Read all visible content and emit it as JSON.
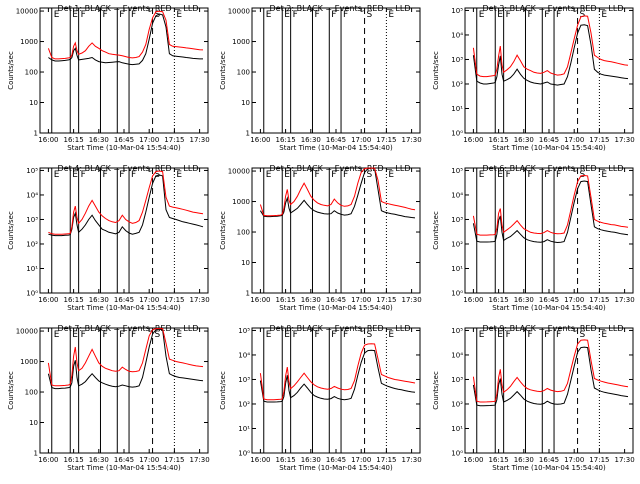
{
  "chart_data": {
    "type": "line",
    "x_ticks": [
      "16:00",
      "16:15",
      "16:30",
      "16:45",
      "17:00",
      "17:15",
      "17:30"
    ],
    "x_tick_minutes": [
      0,
      15,
      30,
      45,
      60,
      75,
      90
    ],
    "x_range_minutes": [
      -5,
      95
    ],
    "ylabel": "Counts/sec",
    "xlabel": "Start Time (10-Mar-04 15:54:40)",
    "colors": {
      "events": "#000000",
      "lld": "#ff0000"
    },
    "markers": [
      {
        "t": 2,
        "label": "E",
        "style": "solid"
      },
      {
        "t": 13,
        "label": "E",
        "style": "solid"
      },
      {
        "t": 18,
        "label": "F",
        "style": "solid"
      },
      {
        "t": 31,
        "label": "F",
        "style": "solid"
      },
      {
        "t": 41,
        "label": "F",
        "style": "solid"
      },
      {
        "t": 48,
        "label": "F",
        "style": "solid"
      },
      {
        "t": 62,
        "label": "S",
        "style": "dash"
      },
      {
        "t": 75,
        "label": "E",
        "style": "dot"
      }
    ],
    "t": [
      0,
      2,
      4,
      6,
      8,
      10,
      12,
      13,
      14,
      15,
      16,
      17,
      18,
      20,
      22,
      24,
      26,
      28,
      30,
      32,
      34,
      36,
      38,
      40,
      42,
      44,
      46,
      48,
      50,
      52,
      54,
      56,
      58,
      60,
      62,
      64,
      66,
      68,
      70,
      72,
      74,
      76,
      78,
      80,
      82,
      84,
      86,
      88,
      90,
      92
    ],
    "panels": [
      {
        "title": "Det 1: BLACK = Events, RED = LLD",
        "y_ticks": [
          "1",
          "10",
          "100",
          "1000",
          "10000"
        ],
        "y_exp_range": [
          0,
          4.1
        ],
        "events": [
          300,
          250,
          230,
          230,
          235,
          240,
          250,
          260,
          300,
          500,
          600,
          350,
          250,
          260,
          270,
          280,
          300,
          250,
          220,
          210,
          200,
          205,
          210,
          215,
          220,
          200,
          190,
          180,
          175,
          180,
          185,
          240,
          400,
          1200,
          4000,
          7000,
          8000,
          7500,
          3000,
          400,
          340,
          330,
          320,
          310,
          300,
          290,
          280,
          275,
          270,
          270
        ],
        "lld": [
          600,
          300,
          270,
          270,
          275,
          280,
          290,
          300,
          360,
          700,
          900,
          500,
          380,
          420,
          500,
          700,
          900,
          700,
          600,
          500,
          450,
          400,
          380,
          370,
          360,
          340,
          320,
          300,
          290,
          300,
          320,
          450,
          800,
          2500,
          6000,
          9500,
          9800,
          9500,
          5000,
          800,
          700,
          680,
          660,
          640,
          620,
          600,
          580,
          560,
          540,
          530
        ]
      },
      {
        "title": "Det 2: BLACK = Events, RED = LLD",
        "y_ticks": [
          "1",
          "10",
          "100",
          "1000",
          "10000"
        ],
        "y_exp_range": [
          0,
          4.1
        ],
        "events": [],
        "lld": []
      },
      {
        "title": "Det 3: BLACK = Events, RED = LLD",
        "y_ticks": [
          "10⁰",
          "10¹",
          "10²",
          "10³",
          "10⁴",
          "10⁵"
        ],
        "y_exp_range": [
          0,
          5.1
        ],
        "events": [
          1500,
          130,
          110,
          100,
          100,
          105,
          110,
          115,
          200,
          600,
          1400,
          250,
          130,
          150,
          180,
          250,
          400,
          250,
          170,
          140,
          120,
          110,
          105,
          100,
          110,
          120,
          100,
          95,
          90,
          95,
          100,
          200,
          700,
          3000,
          12000,
          25000,
          26000,
          24000,
          4000,
          400,
          300,
          250,
          230,
          220,
          210,
          200,
          190,
          180,
          170,
          165
        ],
        "lld": [
          3000,
          250,
          210,
          200,
          200,
          210,
          220,
          230,
          400,
          1400,
          3500,
          600,
          300,
          380,
          500,
          800,
          1500,
          900,
          500,
          400,
          350,
          300,
          280,
          270,
          300,
          350,
          280,
          250,
          230,
          240,
          260,
          500,
          1800,
          7000,
          25000,
          55000,
          60000,
          58000,
          12000,
          1500,
          1200,
          1000,
          900,
          850,
          800,
          750,
          700,
          650,
          600,
          580
        ]
      },
      {
        "title": "Det 4: BLACK = Events, RED = LLD",
        "y_ticks": [
          "10⁰",
          "10¹",
          "10²",
          "10³",
          "10⁴",
          "10⁵"
        ],
        "y_exp_range": [
          0,
          5.1
        ],
        "events": [
          250,
          230,
          220,
          220,
          220,
          225,
          230,
          240,
          400,
          1200,
          1800,
          600,
          300,
          400,
          600,
          1000,
          1500,
          900,
          600,
          400,
          350,
          300,
          280,
          260,
          300,
          500,
          350,
          280,
          250,
          270,
          300,
          600,
          2000,
          8000,
          30000,
          60000,
          65000,
          60000,
          2500,
          1200,
          1100,
          1000,
          900,
          800,
          750,
          700,
          650,
          600,
          550,
          500
        ],
        "lld": [
          300,
          260,
          250,
          250,
          250,
          255,
          260,
          270,
          500,
          2000,
          3500,
          1200,
          700,
          1000,
          1800,
          3500,
          6000,
          3500,
          2000,
          1400,
          1100,
          900,
          800,
          750,
          900,
          1500,
          1000,
          800,
          700,
          750,
          900,
          2000,
          6000,
          20000,
          60000,
          90000,
          95000,
          90000,
          8000,
          3500,
          3200,
          3000,
          2800,
          2600,
          2400,
          2200,
          2000,
          1900,
          1800,
          1700
        ]
      },
      {
        "title": "Det 5: BLACK = Events, RED = LLD",
        "y_ticks": [
          "1",
          "10",
          "100",
          "1000",
          "10000"
        ],
        "y_exp_range": [
          0,
          4.1
        ],
        "events": [
          500,
          330,
          320,
          320,
          325,
          330,
          340,
          350,
          450,
          900,
          1300,
          600,
          420,
          500,
          600,
          800,
          1100,
          800,
          600,
          500,
          450,
          420,
          400,
          390,
          400,
          500,
          420,
          380,
          360,
          370,
          400,
          700,
          1600,
          4000,
          9000,
          12000,
          12500,
          12000,
          2500,
          500,
          450,
          420,
          400,
          380,
          360,
          340,
          320,
          310,
          300,
          290
        ],
        "lld": [
          800,
          350,
          340,
          340,
          345,
          350,
          360,
          380,
          600,
          1500,
          2500,
          1100,
          800,
          1000,
          1500,
          2500,
          4000,
          2500,
          1500,
          1100,
          900,
          800,
          750,
          720,
          800,
          1200,
          900,
          750,
          700,
          720,
          800,
          1500,
          4000,
          9000,
          12000,
          12500,
          12500,
          12500,
          5000,
          1000,
          900,
          850,
          800,
          760,
          720,
          680,
          640,
          600,
          560,
          540
        ]
      },
      {
        "title": "Det 6: BLACK = Events, RED = LLD",
        "y_ticks": [
          "10⁰",
          "10¹",
          "10²",
          "10³",
          "10⁴",
          "10⁵"
        ],
        "y_exp_range": [
          0,
          5.1
        ],
        "events": [
          700,
          130,
          120,
          120,
          120,
          122,
          125,
          130,
          250,
          900,
          1400,
          300,
          140,
          170,
          200,
          260,
          350,
          250,
          180,
          150,
          135,
          125,
          120,
          118,
          125,
          150,
          130,
          120,
          115,
          118,
          125,
          300,
          1200,
          5000,
          18000,
          35000,
          37000,
          35000,
          4000,
          500,
          420,
          380,
          350,
          330,
          310,
          300,
          280,
          260,
          250,
          240
        ],
        "lld": [
          1400,
          250,
          230,
          230,
          230,
          235,
          240,
          250,
          450,
          1800,
          2800,
          600,
          300,
          380,
          480,
          650,
          900,
          600,
          420,
          350,
          300,
          280,
          270,
          265,
          290,
          350,
          300,
          270,
          260,
          265,
          280,
          600,
          2400,
          10000,
          35000,
          60000,
          62000,
          60000,
          8000,
          1000,
          850,
          760,
          700,
          660,
          620,
          600,
          560,
          520,
          500,
          480
        ]
      },
      {
        "title": "Det 7: BLACK = Events, RED = LLD",
        "y_ticks": [
          "1",
          "10",
          "100",
          "1000",
          "10000"
        ],
        "y_exp_range": [
          0,
          4.1
        ],
        "events": [
          400,
          140,
          130,
          130,
          132,
          135,
          140,
          145,
          200,
          700,
          1100,
          300,
          160,
          180,
          220,
          300,
          400,
          300,
          230,
          200,
          180,
          165,
          155,
          150,
          155,
          170,
          160,
          150,
          145,
          150,
          160,
          300,
          900,
          3000,
          8000,
          11000,
          11500,
          11000,
          1500,
          400,
          350,
          320,
          300,
          290,
          280,
          270,
          260,
          250,
          240,
          235
        ],
        "lld": [
          900,
          170,
          160,
          160,
          162,
          165,
          170,
          180,
          350,
          1500,
          3000,
          900,
          500,
          600,
          900,
          1500,
          2500,
          1500,
          900,
          700,
          600,
          550,
          500,
          480,
          500,
          650,
          550,
          480,
          460,
          470,
          500,
          900,
          2500,
          7000,
          11000,
          12000,
          12000,
          12000,
          4000,
          1200,
          1100,
          1000,
          950,
          900,
          850,
          800,
          760,
          720,
          700,
          680
        ]
      },
      {
        "title": "Det 8: BLACK = Events, RED = LLD",
        "y_ticks": [
          "10⁰",
          "10¹",
          "10²",
          "10³",
          "10⁴",
          "10⁵"
        ],
        "y_exp_range": [
          0,
          5.1
        ],
        "events": [
          900,
          130,
          120,
          120,
          120,
          122,
          125,
          130,
          200,
          700,
          1500,
          350,
          180,
          220,
          300,
          450,
          650,
          450,
          300,
          220,
          190,
          170,
          160,
          155,
          165,
          200,
          170,
          155,
          150,
          155,
          170,
          400,
          1500,
          5000,
          12000,
          15000,
          15500,
          15000,
          3000,
          700,
          600,
          520,
          470,
          430,
          400,
          380,
          350,
          330,
          310,
          300
        ],
        "lld": [
          1800,
          160,
          150,
          150,
          150,
          152,
          155,
          160,
          320,
          1400,
          3200,
          800,
          420,
          550,
          800,
          1200,
          1800,
          1200,
          800,
          600,
          500,
          450,
          420,
          400,
          430,
          520,
          450,
          400,
          380,
          390,
          430,
          900,
          3500,
          12000,
          25000,
          28000,
          28500,
          28000,
          7000,
          1600,
          1400,
          1200,
          1100,
          1000,
          950,
          900,
          850,
          800,
          760,
          720
        ]
      },
      {
        "title": "Det 9: BLACK = Events, RED = LLD",
        "y_ticks": [
          "10⁰",
          "10¹",
          "10²",
          "10³",
          "10⁴",
          "10⁵"
        ],
        "y_exp_range": [
          0,
          5.1
        ],
        "events": [
          600,
          90,
          85,
          85,
          86,
          87,
          88,
          90,
          150,
          600,
          1100,
          250,
          120,
          140,
          170,
          230,
          320,
          230,
          160,
          130,
          115,
          105,
          100,
          98,
          105,
          130,
          110,
          100,
          97,
          100,
          108,
          250,
          900,
          3500,
          13000,
          20000,
          21000,
          20000,
          2500,
          450,
          380,
          330,
          300,
          280,
          265,
          250,
          235,
          220,
          210,
          200
        ],
        "lld": [
          1300,
          130,
          120,
          120,
          122,
          124,
          126,
          130,
          260,
          1200,
          2600,
          600,
          300,
          380,
          520,
          800,
          1200,
          800,
          550,
          430,
          380,
          350,
          330,
          320,
          350,
          430,
          370,
          340,
          320,
          330,
          360,
          700,
          2500,
          9000,
          28000,
          40000,
          41000,
          40000,
          6000,
          1100,
          950,
          850,
          780,
          720,
          680,
          640,
          600,
          560,
          530,
          500
        ]
      }
    ]
  }
}
